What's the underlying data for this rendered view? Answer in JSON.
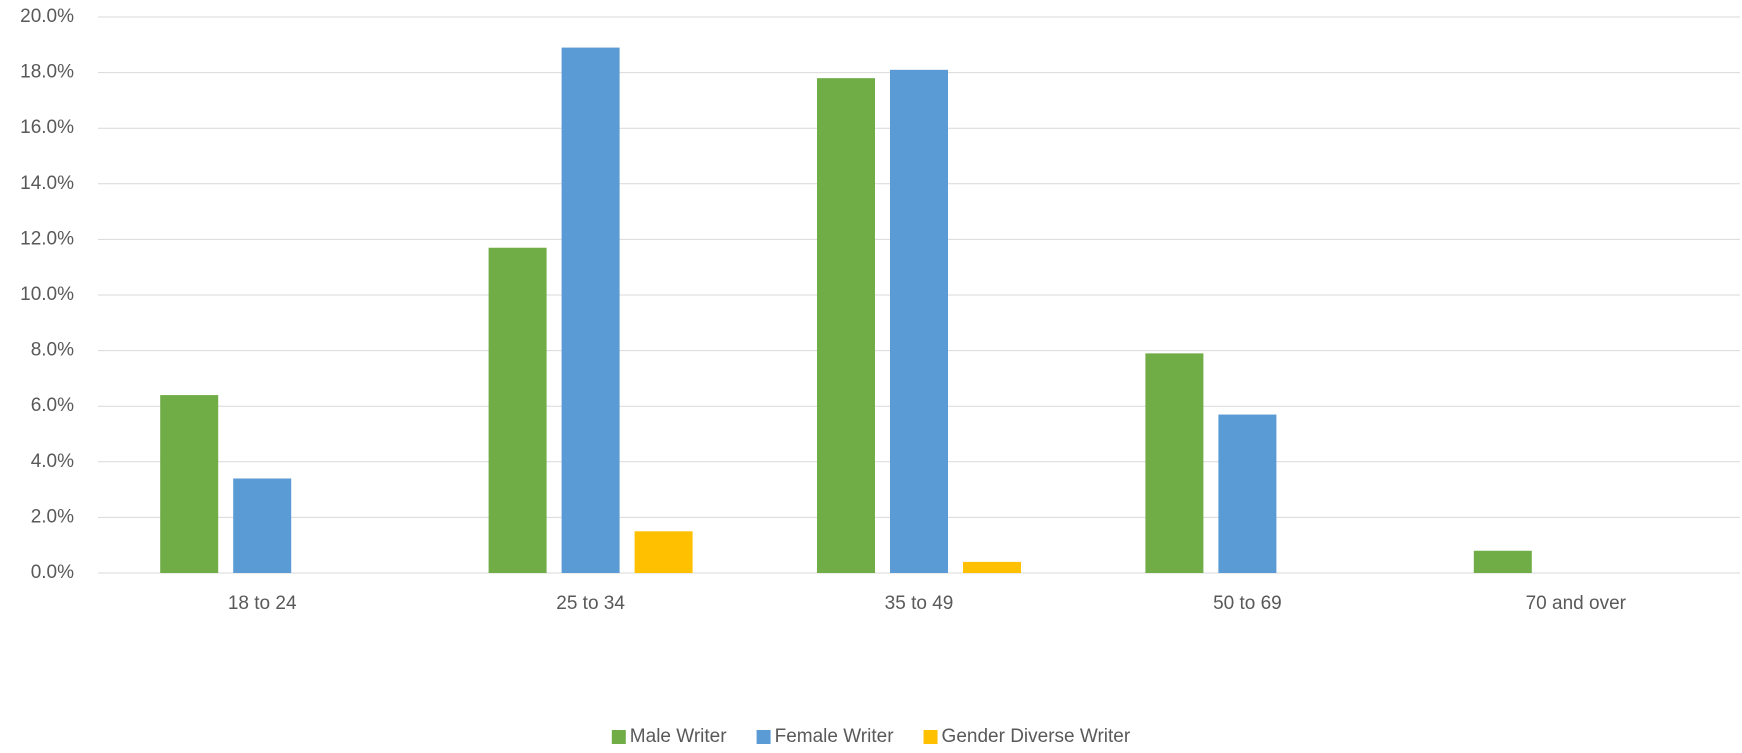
{
  "chart_data": {
    "type": "bar",
    "categories": [
      "18 to 24",
      "25 to 34",
      "35 to 49",
      "50 to 69",
      "70 and over"
    ],
    "series": [
      {
        "name": "Male Writer",
        "color": "#70ad47",
        "values": [
          6.4,
          11.7,
          17.8,
          7.9,
          0.8
        ]
      },
      {
        "name": "Female Writer",
        "color": "#5b9bd5",
        "values": [
          3.4,
          18.9,
          18.1,
          5.7,
          0
        ]
      },
      {
        "name": "Gender Diverse Writer",
        "color": "#ffc000",
        "values": [
          0,
          1.5,
          0.4,
          0,
          0
        ]
      }
    ],
    "ylim": [
      0,
      20
    ],
    "yticks": [
      {
        "value": 0,
        "label": "0.0%"
      },
      {
        "value": 2,
        "label": "2.0%"
      },
      {
        "value": 4,
        "label": "4.0%"
      },
      {
        "value": 6,
        "label": "6.0%"
      },
      {
        "value": 8,
        "label": "8.0%"
      },
      {
        "value": 10,
        "label": "10.0%"
      },
      {
        "value": 12,
        "label": "12.0%"
      },
      {
        "value": 14,
        "label": "14.0%"
      },
      {
        "value": 16,
        "label": "16.0%"
      },
      {
        "value": 18,
        "label": "18.0%"
      },
      {
        "value": 20,
        "label": "20.0%"
      }
    ],
    "grid": true,
    "legend": "bottom"
  }
}
